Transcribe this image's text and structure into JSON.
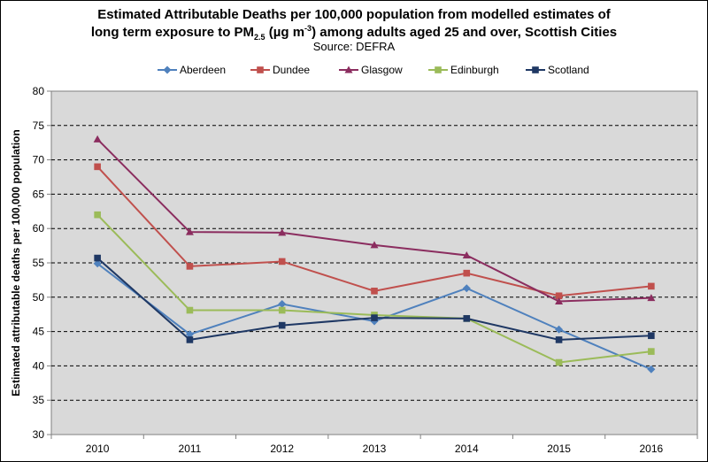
{
  "title": {
    "line1": "Estimated Attributable Deaths per 100,000 population from modelled estimates of",
    "line2_pre": "long term exposure to PM",
    "line2_sub": "2.5",
    "line2_mid": " (µg m",
    "line2_sup": "-3",
    "line2_post": ") among adults aged 25 and over, Scottish Cities",
    "source": "Source: DEFRA"
  },
  "chart_data": {
    "type": "line",
    "categories": [
      "2010",
      "2011",
      "2012",
      "2013",
      "2014",
      "2015",
      "2016"
    ],
    "ylabel": "Estimated attributable deaths per 100,000 population",
    "xlabel": "",
    "ylim": [
      30,
      80
    ],
    "yticks": [
      30,
      35,
      40,
      45,
      50,
      55,
      60,
      65,
      70,
      75,
      80
    ],
    "grid": true,
    "legend_position": "top",
    "series": [
      {
        "name": "Aberdeen",
        "color": "#4F81BD",
        "marker": "diamond",
        "values": [
          54.9,
          44.6,
          49.0,
          46.5,
          51.3,
          45.3,
          39.5
        ]
      },
      {
        "name": "Dundee",
        "color": "#C0504D",
        "marker": "square",
        "values": [
          69.0,
          54.5,
          55.2,
          50.9,
          53.5,
          50.2,
          51.6
        ]
      },
      {
        "name": "Glasgow",
        "color": "#8B2D5F",
        "marker": "triangle",
        "values": [
          73.0,
          59.5,
          59.4,
          57.6,
          56.1,
          49.4,
          49.9
        ]
      },
      {
        "name": "Edinburgh",
        "color": "#9BBB59",
        "marker": "square",
        "values": [
          62.0,
          48.1,
          48.1,
          47.4,
          46.9,
          40.5,
          42.1
        ]
      },
      {
        "name": "Scotland",
        "color": "#1F3864",
        "marker": "square",
        "values": [
          55.7,
          43.8,
          45.9,
          47.0,
          46.9,
          43.8,
          44.4
        ]
      }
    ]
  }
}
